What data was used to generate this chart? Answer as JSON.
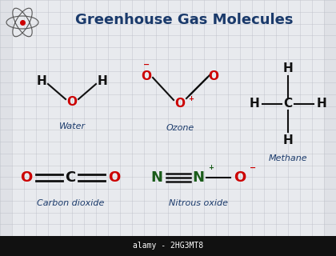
{
  "title": "Greenhouse Gas Molecules",
  "title_color": "#1a3a6b",
  "title_fontsize": 13,
  "bg_color": "#c8cdd6",
  "paper_color": "#e6e8ec",
  "grid_color": "#b8bcc4",
  "bottom_bar_color": "#111111",
  "bottom_text": "alamy - 2HG3MT8",
  "bottom_text_color": "#ffffff",
  "colors": {
    "red": "#cc0000",
    "black": "#111111",
    "green": "#1a5c1a",
    "blue": "#1a3a6b"
  },
  "water_label": "Water",
  "ozone_label": "Ozone",
  "methane_label": "Methane",
  "co2_label": "Carbon dioxide",
  "n2o_label": "Nitrous oxide"
}
